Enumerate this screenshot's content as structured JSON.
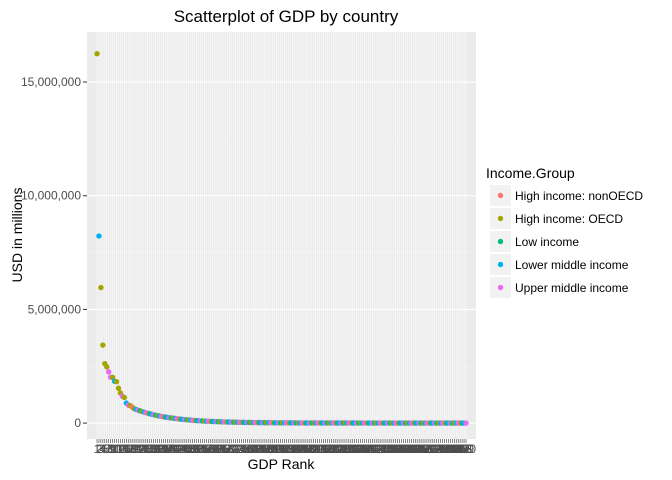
{
  "chart_data": {
    "type": "scatter",
    "title": "Scatterplot of GDP by country",
    "xlabel": "GDP Rank",
    "ylabel": "USD in millions",
    "x_count": 190,
    "ylim": [
      -700000,
      17200000
    ],
    "y_ticks": [
      0,
      5000000,
      10000000,
      15000000
    ],
    "y_tick_labels": [
      "0",
      "5,000,000",
      "10,000,000",
      "15,000,000"
    ],
    "grid": true,
    "legend": {
      "title": "Income.Group",
      "position": "right",
      "entries": [
        {
          "label": "High income: nonOECD",
          "color": "#F8766D"
        },
        {
          "label": "High income: OECD",
          "color": "#A3A500"
        },
        {
          "label": "Low income",
          "color": "#00BF7D"
        },
        {
          "label": "Lower middle income",
          "color": "#00B0F6"
        },
        {
          "label": "Upper middle income",
          "color": "#E76BF3"
        }
      ]
    },
    "points": [
      {
        "x": 1,
        "y": 16244600,
        "group": "High income: OECD"
      },
      {
        "x": 2,
        "y": 8227103,
        "group": "Lower middle income"
      },
      {
        "x": 3,
        "y": 5959718,
        "group": "High income: OECD"
      },
      {
        "x": 4,
        "y": 3428131,
        "group": "High income: OECD"
      },
      {
        "x": 5,
        "y": 2612878,
        "group": "High income: OECD"
      },
      {
        "x": 6,
        "y": 2471784,
        "group": "High income: OECD"
      },
      {
        "x": 7,
        "y": 2252664,
        "group": "Upper middle income"
      },
      {
        "x": 8,
        "y": 2014775,
        "group": "Upper middle income"
      },
      {
        "x": 9,
        "y": 2014670,
        "group": "High income: OECD"
      },
      {
        "x": 10,
        "y": 1841710,
        "group": "Lower middle income"
      },
      {
        "x": 11,
        "y": 1821424,
        "group": "High income: OECD"
      },
      {
        "x": 12,
        "y": 1532408,
        "group": "High income: OECD"
      },
      {
        "x": 13,
        "y": 1322965,
        "group": "High income: OECD"
      },
      {
        "x": 14,
        "y": 1178126,
        "group": "Upper middle income"
      },
      {
        "x": 15,
        "y": 1129223,
        "group": "High income: OECD"
      },
      {
        "x": 16,
        "y": 878043,
        "group": "Lower middle income"
      },
      {
        "x": 17,
        "y": 789257,
        "group": "Upper middle income"
      },
      {
        "x": 18,
        "y": 770555,
        "group": "High income: OECD"
      },
      {
        "x": 19,
        "y": 711050,
        "group": "High income: nonOECD"
      },
      {
        "x": 20,
        "y": 631173,
        "group": "High income: OECD"
      }
    ],
    "tail": {
      "from_x": 21,
      "to_x": 190,
      "start_y": 600000,
      "decay": 0.055,
      "group_cycle": [
        "Lower middle income",
        "Upper middle income",
        "Low income",
        "High income: OECD",
        "Lower middle income",
        "Upper middle income",
        "High income: nonOECD",
        "Low income"
      ]
    }
  }
}
